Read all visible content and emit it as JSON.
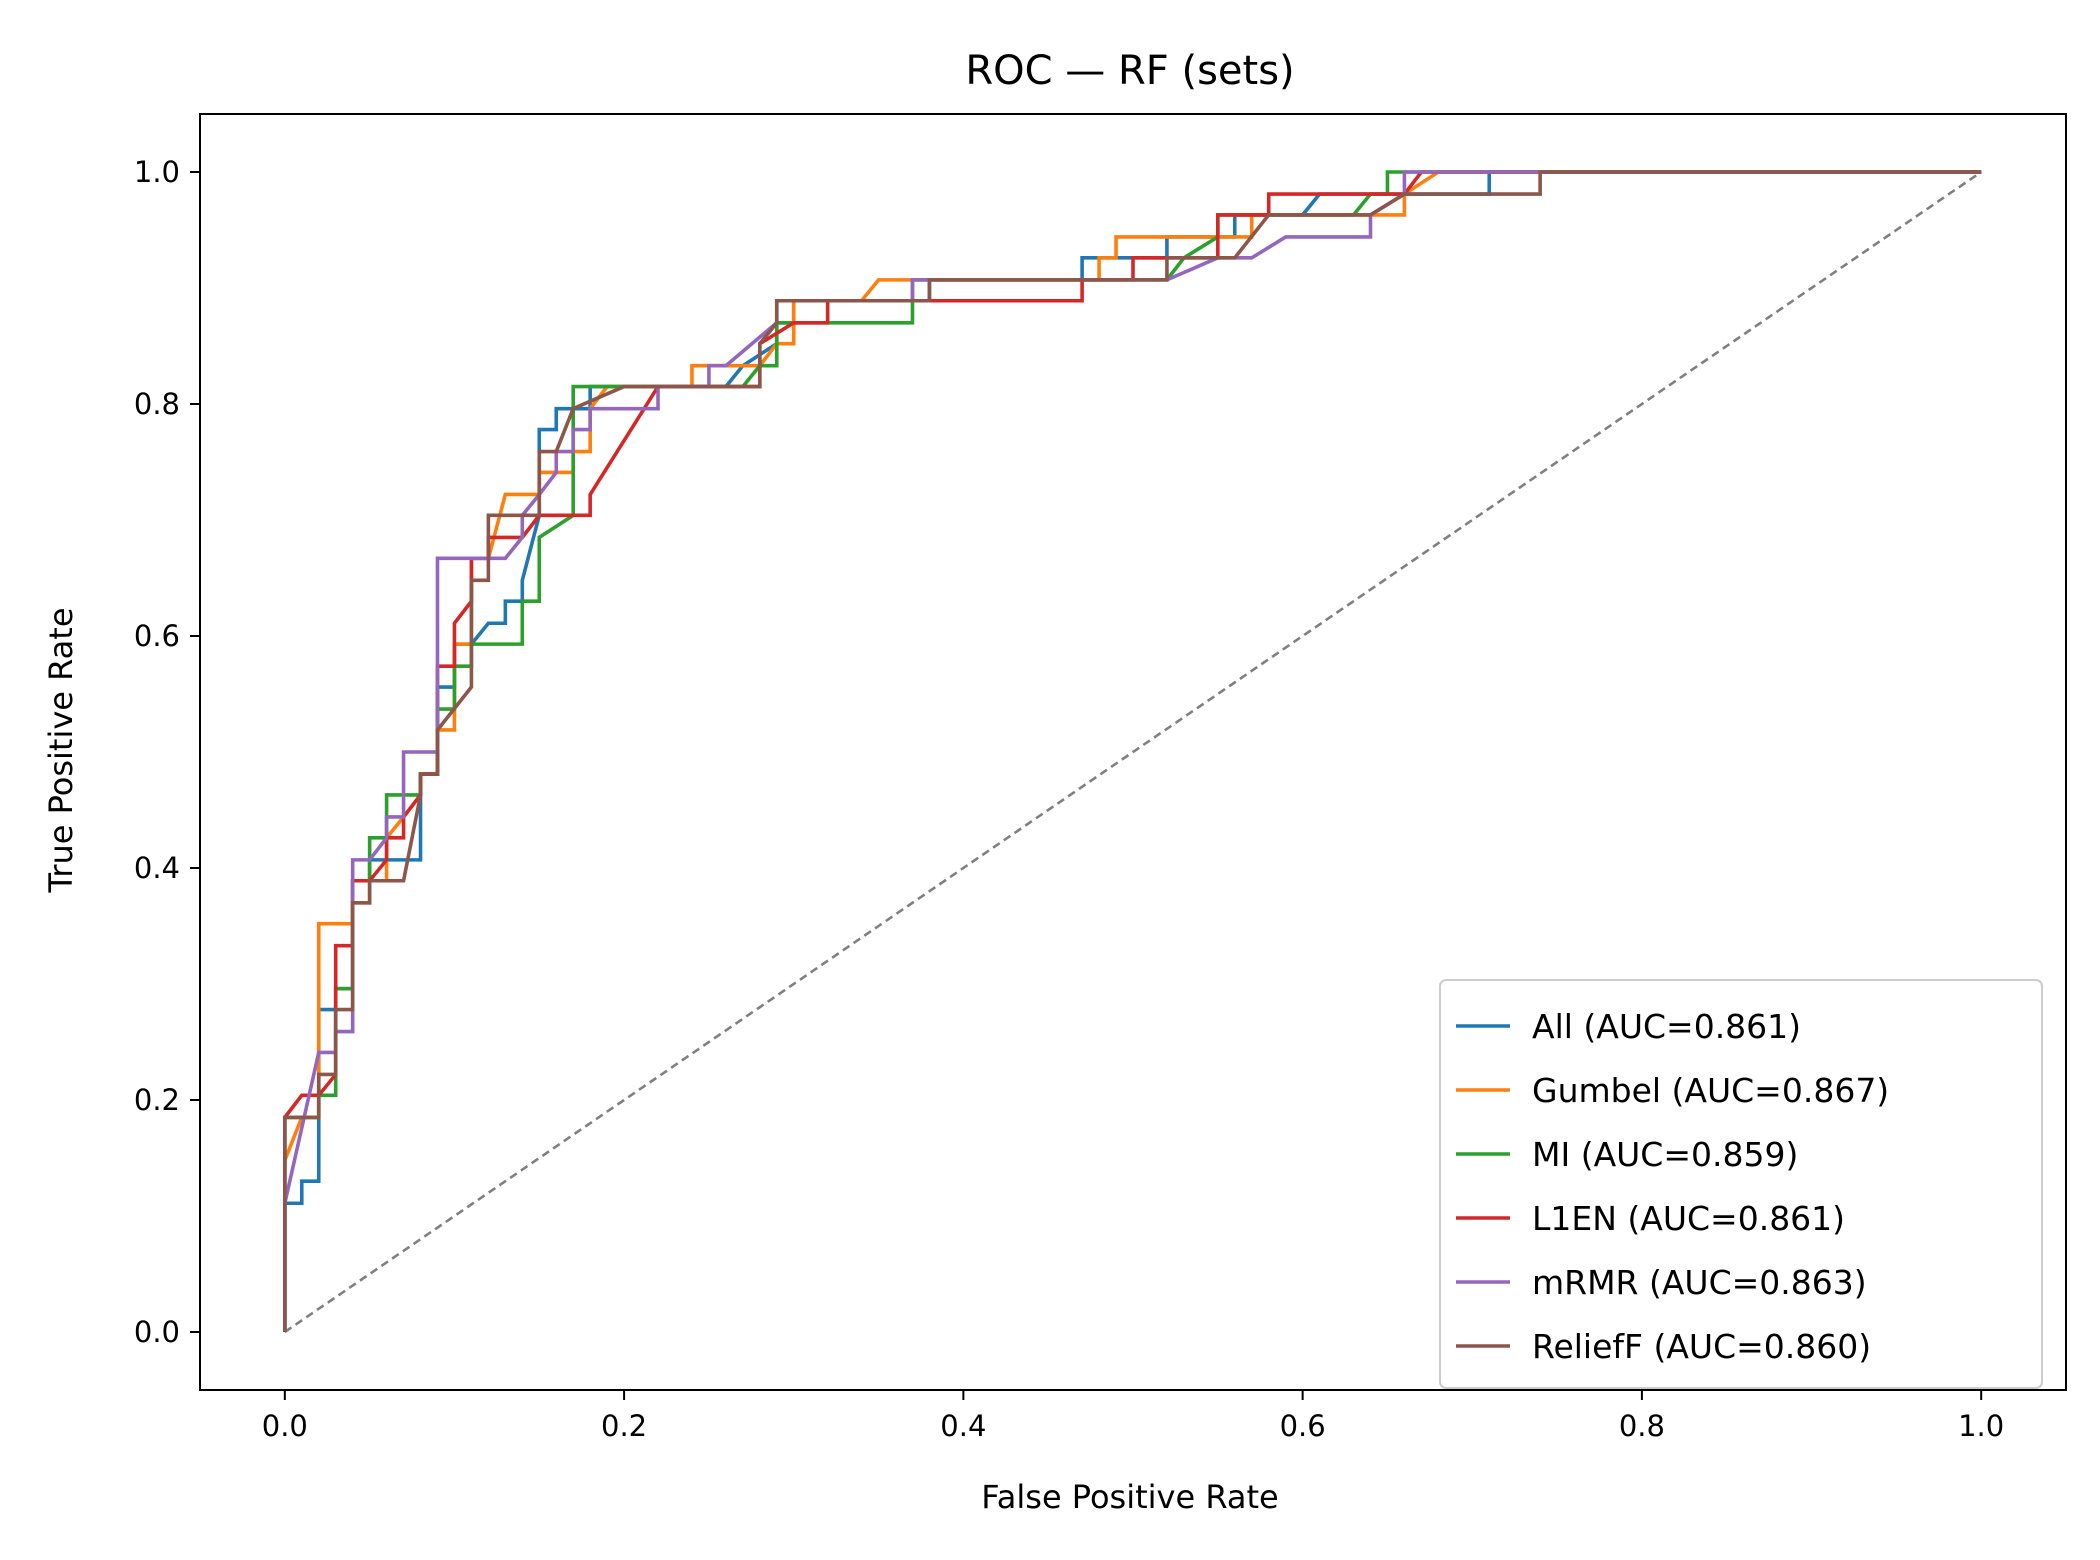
{
  "chart_data": {
    "type": "line",
    "title": "ROC — RF (sets)",
    "xlabel": "False Positive Rate",
    "ylabel": "True Positive Rate",
    "xlim": [
      -0.05,
      1.05
    ],
    "ylim": [
      -0.05,
      1.05
    ],
    "xticks": [
      0.0,
      0.2,
      0.4,
      0.6,
      0.8,
      1.0
    ],
    "yticks": [
      0.0,
      0.2,
      0.4,
      0.6,
      0.8,
      1.0
    ],
    "xtick_labels": [
      "0.0",
      "0.2",
      "0.4",
      "0.6",
      "0.8",
      "1.0"
    ],
    "ytick_labels": [
      "0.0",
      "0.2",
      "0.4",
      "0.6",
      "0.8",
      "1.0"
    ],
    "grid": false,
    "legend_position": "lower-right",
    "diagonal": {
      "points": [
        [
          0,
          0
        ],
        [
          1,
          1
        ]
      ],
      "color": "#808080",
      "style": "dashed"
    },
    "series": [
      {
        "name": "All (AUC=0.861)",
        "color": "#1f77b4",
        "points": [
          [
            0,
            0
          ],
          [
            0,
            0.111
          ],
          [
            0.01,
            0.111
          ],
          [
            0.01,
            0.13
          ],
          [
            0.02,
            0.13
          ],
          [
            0.02,
            0.278
          ],
          [
            0.03,
            0.278
          ],
          [
            0.03,
            0.296
          ],
          [
            0.04,
            0.296
          ],
          [
            0.04,
            0.389
          ],
          [
            0.05,
            0.389
          ],
          [
            0.05,
            0.407
          ],
          [
            0.08,
            0.407
          ],
          [
            0.08,
            0.481
          ],
          [
            0.09,
            0.481
          ],
          [
            0.09,
            0.556
          ],
          [
            0.1,
            0.556
          ],
          [
            0.1,
            0.593
          ],
          [
            0.11,
            0.593
          ],
          [
            0.12,
            0.611
          ],
          [
            0.13,
            0.611
          ],
          [
            0.13,
            0.63
          ],
          [
            0.14,
            0.63
          ],
          [
            0.14,
            0.648
          ],
          [
            0.15,
            0.704
          ],
          [
            0.15,
            0.778
          ],
          [
            0.16,
            0.778
          ],
          [
            0.16,
            0.796
          ],
          [
            0.17,
            0.796
          ],
          [
            0.18,
            0.796
          ],
          [
            0.18,
            0.815
          ],
          [
            0.26,
            0.815
          ],
          [
            0.27,
            0.833
          ],
          [
            0.29,
            0.852
          ],
          [
            0.29,
            0.87
          ],
          [
            0.3,
            0.87
          ],
          [
            0.3,
            0.889
          ],
          [
            0.38,
            0.889
          ],
          [
            0.38,
            0.907
          ],
          [
            0.47,
            0.907
          ],
          [
            0.47,
            0.926
          ],
          [
            0.49,
            0.926
          ],
          [
            0.52,
            0.926
          ],
          [
            0.52,
            0.944
          ],
          [
            0.56,
            0.944
          ],
          [
            0.56,
            0.963
          ],
          [
            0.6,
            0.963
          ],
          [
            0.61,
            0.981
          ],
          [
            0.71,
            0.981
          ],
          [
            0.71,
            1.0
          ],
          [
            1.0,
            1.0
          ]
        ]
      },
      {
        "name": "Gumbel (AUC=0.867)",
        "color": "#ff7f0e",
        "points": [
          [
            0,
            0
          ],
          [
            0,
            0.148
          ],
          [
            0.01,
            0.185
          ],
          [
            0.02,
            0.185
          ],
          [
            0.02,
            0.352
          ],
          [
            0.04,
            0.352
          ],
          [
            0.04,
            0.37
          ],
          [
            0.05,
            0.37
          ],
          [
            0.05,
            0.389
          ],
          [
            0.06,
            0.389
          ],
          [
            0.06,
            0.426
          ],
          [
            0.07,
            0.444
          ],
          [
            0.08,
            0.463
          ],
          [
            0.08,
            0.481
          ],
          [
            0.09,
            0.481
          ],
          [
            0.09,
            0.519
          ],
          [
            0.1,
            0.519
          ],
          [
            0.1,
            0.593
          ],
          [
            0.11,
            0.593
          ],
          [
            0.11,
            0.667
          ],
          [
            0.12,
            0.667
          ],
          [
            0.13,
            0.722
          ],
          [
            0.15,
            0.722
          ],
          [
            0.15,
            0.741
          ],
          [
            0.17,
            0.741
          ],
          [
            0.17,
            0.759
          ],
          [
            0.18,
            0.759
          ],
          [
            0.18,
            0.796
          ],
          [
            0.19,
            0.815
          ],
          [
            0.24,
            0.815
          ],
          [
            0.24,
            0.833
          ],
          [
            0.28,
            0.833
          ],
          [
            0.29,
            0.852
          ],
          [
            0.3,
            0.852
          ],
          [
            0.3,
            0.889
          ],
          [
            0.34,
            0.889
          ],
          [
            0.35,
            0.907
          ],
          [
            0.48,
            0.907
          ],
          [
            0.48,
            0.926
          ],
          [
            0.49,
            0.926
          ],
          [
            0.49,
            0.944
          ],
          [
            0.57,
            0.944
          ],
          [
            0.57,
            0.963
          ],
          [
            0.66,
            0.963
          ],
          [
            0.66,
            0.981
          ],
          [
            0.68,
            1.0
          ],
          [
            1.0,
            1.0
          ]
        ]
      },
      {
        "name": "MI (AUC=0.859)",
        "color": "#2ca02c",
        "points": [
          [
            0,
            0
          ],
          [
            0,
            0.185
          ],
          [
            0.02,
            0.185
          ],
          [
            0.02,
            0.204
          ],
          [
            0.03,
            0.204
          ],
          [
            0.03,
            0.296
          ],
          [
            0.04,
            0.296
          ],
          [
            0.04,
            0.389
          ],
          [
            0.05,
            0.389
          ],
          [
            0.05,
            0.426
          ],
          [
            0.06,
            0.426
          ],
          [
            0.06,
            0.463
          ],
          [
            0.08,
            0.463
          ],
          [
            0.08,
            0.481
          ],
          [
            0.09,
            0.481
          ],
          [
            0.09,
            0.537
          ],
          [
            0.1,
            0.537
          ],
          [
            0.1,
            0.574
          ],
          [
            0.11,
            0.574
          ],
          [
            0.11,
            0.593
          ],
          [
            0.14,
            0.593
          ],
          [
            0.14,
            0.63
          ],
          [
            0.15,
            0.63
          ],
          [
            0.15,
            0.685
          ],
          [
            0.17,
            0.704
          ],
          [
            0.17,
            0.815
          ],
          [
            0.27,
            0.815
          ],
          [
            0.28,
            0.833
          ],
          [
            0.29,
            0.833
          ],
          [
            0.29,
            0.87
          ],
          [
            0.37,
            0.87
          ],
          [
            0.37,
            0.907
          ],
          [
            0.52,
            0.907
          ],
          [
            0.53,
            0.926
          ],
          [
            0.55,
            0.944
          ],
          [
            0.55,
            0.963
          ],
          [
            0.63,
            0.963
          ],
          [
            0.64,
            0.981
          ],
          [
            0.65,
            0.981
          ],
          [
            0.65,
            1.0
          ],
          [
            1.0,
            1.0
          ]
        ]
      },
      {
        "name": "L1EN (AUC=0.861)",
        "color": "#d62728",
        "points": [
          [
            0,
            0
          ],
          [
            0,
            0.185
          ],
          [
            0.01,
            0.204
          ],
          [
            0.02,
            0.204
          ],
          [
            0.03,
            0.222
          ],
          [
            0.03,
            0.333
          ],
          [
            0.04,
            0.333
          ],
          [
            0.04,
            0.389
          ],
          [
            0.05,
            0.389
          ],
          [
            0.06,
            0.407
          ],
          [
            0.06,
            0.426
          ],
          [
            0.07,
            0.426
          ],
          [
            0.07,
            0.444
          ],
          [
            0.08,
            0.463
          ],
          [
            0.08,
            0.481
          ],
          [
            0.09,
            0.481
          ],
          [
            0.09,
            0.574
          ],
          [
            0.1,
            0.574
          ],
          [
            0.1,
            0.611
          ],
          [
            0.11,
            0.63
          ],
          [
            0.11,
            0.667
          ],
          [
            0.12,
            0.667
          ],
          [
            0.12,
            0.685
          ],
          [
            0.14,
            0.685
          ],
          [
            0.15,
            0.704
          ],
          [
            0.18,
            0.704
          ],
          [
            0.18,
            0.722
          ],
          [
            0.22,
            0.815
          ],
          [
            0.28,
            0.815
          ],
          [
            0.28,
            0.852
          ],
          [
            0.3,
            0.87
          ],
          [
            0.32,
            0.87
          ],
          [
            0.32,
            0.889
          ],
          [
            0.47,
            0.889
          ],
          [
            0.47,
            0.907
          ],
          [
            0.5,
            0.907
          ],
          [
            0.5,
            0.926
          ],
          [
            0.55,
            0.926
          ],
          [
            0.55,
            0.963
          ],
          [
            0.58,
            0.963
          ],
          [
            0.58,
            0.981
          ],
          [
            0.66,
            0.981
          ],
          [
            0.67,
            1.0
          ],
          [
            1.0,
            1.0
          ]
        ]
      },
      {
        "name": "mRMR (AUC=0.863)",
        "color": "#9467bd",
        "points": [
          [
            0,
            0
          ],
          [
            0,
            0.111
          ],
          [
            0.02,
            0.241
          ],
          [
            0.03,
            0.241
          ],
          [
            0.03,
            0.259
          ],
          [
            0.04,
            0.259
          ],
          [
            0.04,
            0.407
          ],
          [
            0.05,
            0.407
          ],
          [
            0.06,
            0.426
          ],
          [
            0.06,
            0.444
          ],
          [
            0.07,
            0.444
          ],
          [
            0.07,
            0.5
          ],
          [
            0.09,
            0.5
          ],
          [
            0.09,
            0.667
          ],
          [
            0.13,
            0.667
          ],
          [
            0.14,
            0.685
          ],
          [
            0.14,
            0.704
          ],
          [
            0.15,
            0.722
          ],
          [
            0.16,
            0.741
          ],
          [
            0.16,
            0.759
          ],
          [
            0.17,
            0.759
          ],
          [
            0.17,
            0.778
          ],
          [
            0.18,
            0.778
          ],
          [
            0.18,
            0.796
          ],
          [
            0.22,
            0.796
          ],
          [
            0.22,
            0.815
          ],
          [
            0.25,
            0.815
          ],
          [
            0.25,
            0.833
          ],
          [
            0.26,
            0.833
          ],
          [
            0.29,
            0.87
          ],
          [
            0.29,
            0.889
          ],
          [
            0.37,
            0.889
          ],
          [
            0.37,
            0.907
          ],
          [
            0.52,
            0.907
          ],
          [
            0.55,
            0.926
          ],
          [
            0.57,
            0.926
          ],
          [
            0.59,
            0.944
          ],
          [
            0.64,
            0.944
          ],
          [
            0.64,
            0.963
          ],
          [
            0.66,
            0.981
          ],
          [
            0.66,
            1.0
          ],
          [
            1.0,
            1.0
          ]
        ]
      },
      {
        "name": "ReliefF (AUC=0.860)",
        "color": "#8c564b",
        "points": [
          [
            0,
            0
          ],
          [
            0,
            0.185
          ],
          [
            0.02,
            0.185
          ],
          [
            0.02,
            0.222
          ],
          [
            0.03,
            0.222
          ],
          [
            0.03,
            0.278
          ],
          [
            0.04,
            0.278
          ],
          [
            0.04,
            0.37
          ],
          [
            0.05,
            0.37
          ],
          [
            0.05,
            0.389
          ],
          [
            0.07,
            0.389
          ],
          [
            0.08,
            0.463
          ],
          [
            0.08,
            0.481
          ],
          [
            0.09,
            0.481
          ],
          [
            0.09,
            0.519
          ],
          [
            0.11,
            0.556
          ],
          [
            0.11,
            0.648
          ],
          [
            0.12,
            0.648
          ],
          [
            0.12,
            0.704
          ],
          [
            0.15,
            0.704
          ],
          [
            0.15,
            0.759
          ],
          [
            0.16,
            0.759
          ],
          [
            0.17,
            0.796
          ],
          [
            0.2,
            0.815
          ],
          [
            0.28,
            0.815
          ],
          [
            0.28,
            0.852
          ],
          [
            0.29,
            0.87
          ],
          [
            0.29,
            0.889
          ],
          [
            0.38,
            0.889
          ],
          [
            0.38,
            0.907
          ],
          [
            0.47,
            0.907
          ],
          [
            0.52,
            0.907
          ],
          [
            0.52,
            0.926
          ],
          [
            0.56,
            0.926
          ],
          [
            0.58,
            0.963
          ],
          [
            0.64,
            0.963
          ],
          [
            0.66,
            0.981
          ],
          [
            0.74,
            0.981
          ],
          [
            0.74,
            1.0
          ],
          [
            1.0,
            1.0
          ]
        ]
      }
    ]
  }
}
